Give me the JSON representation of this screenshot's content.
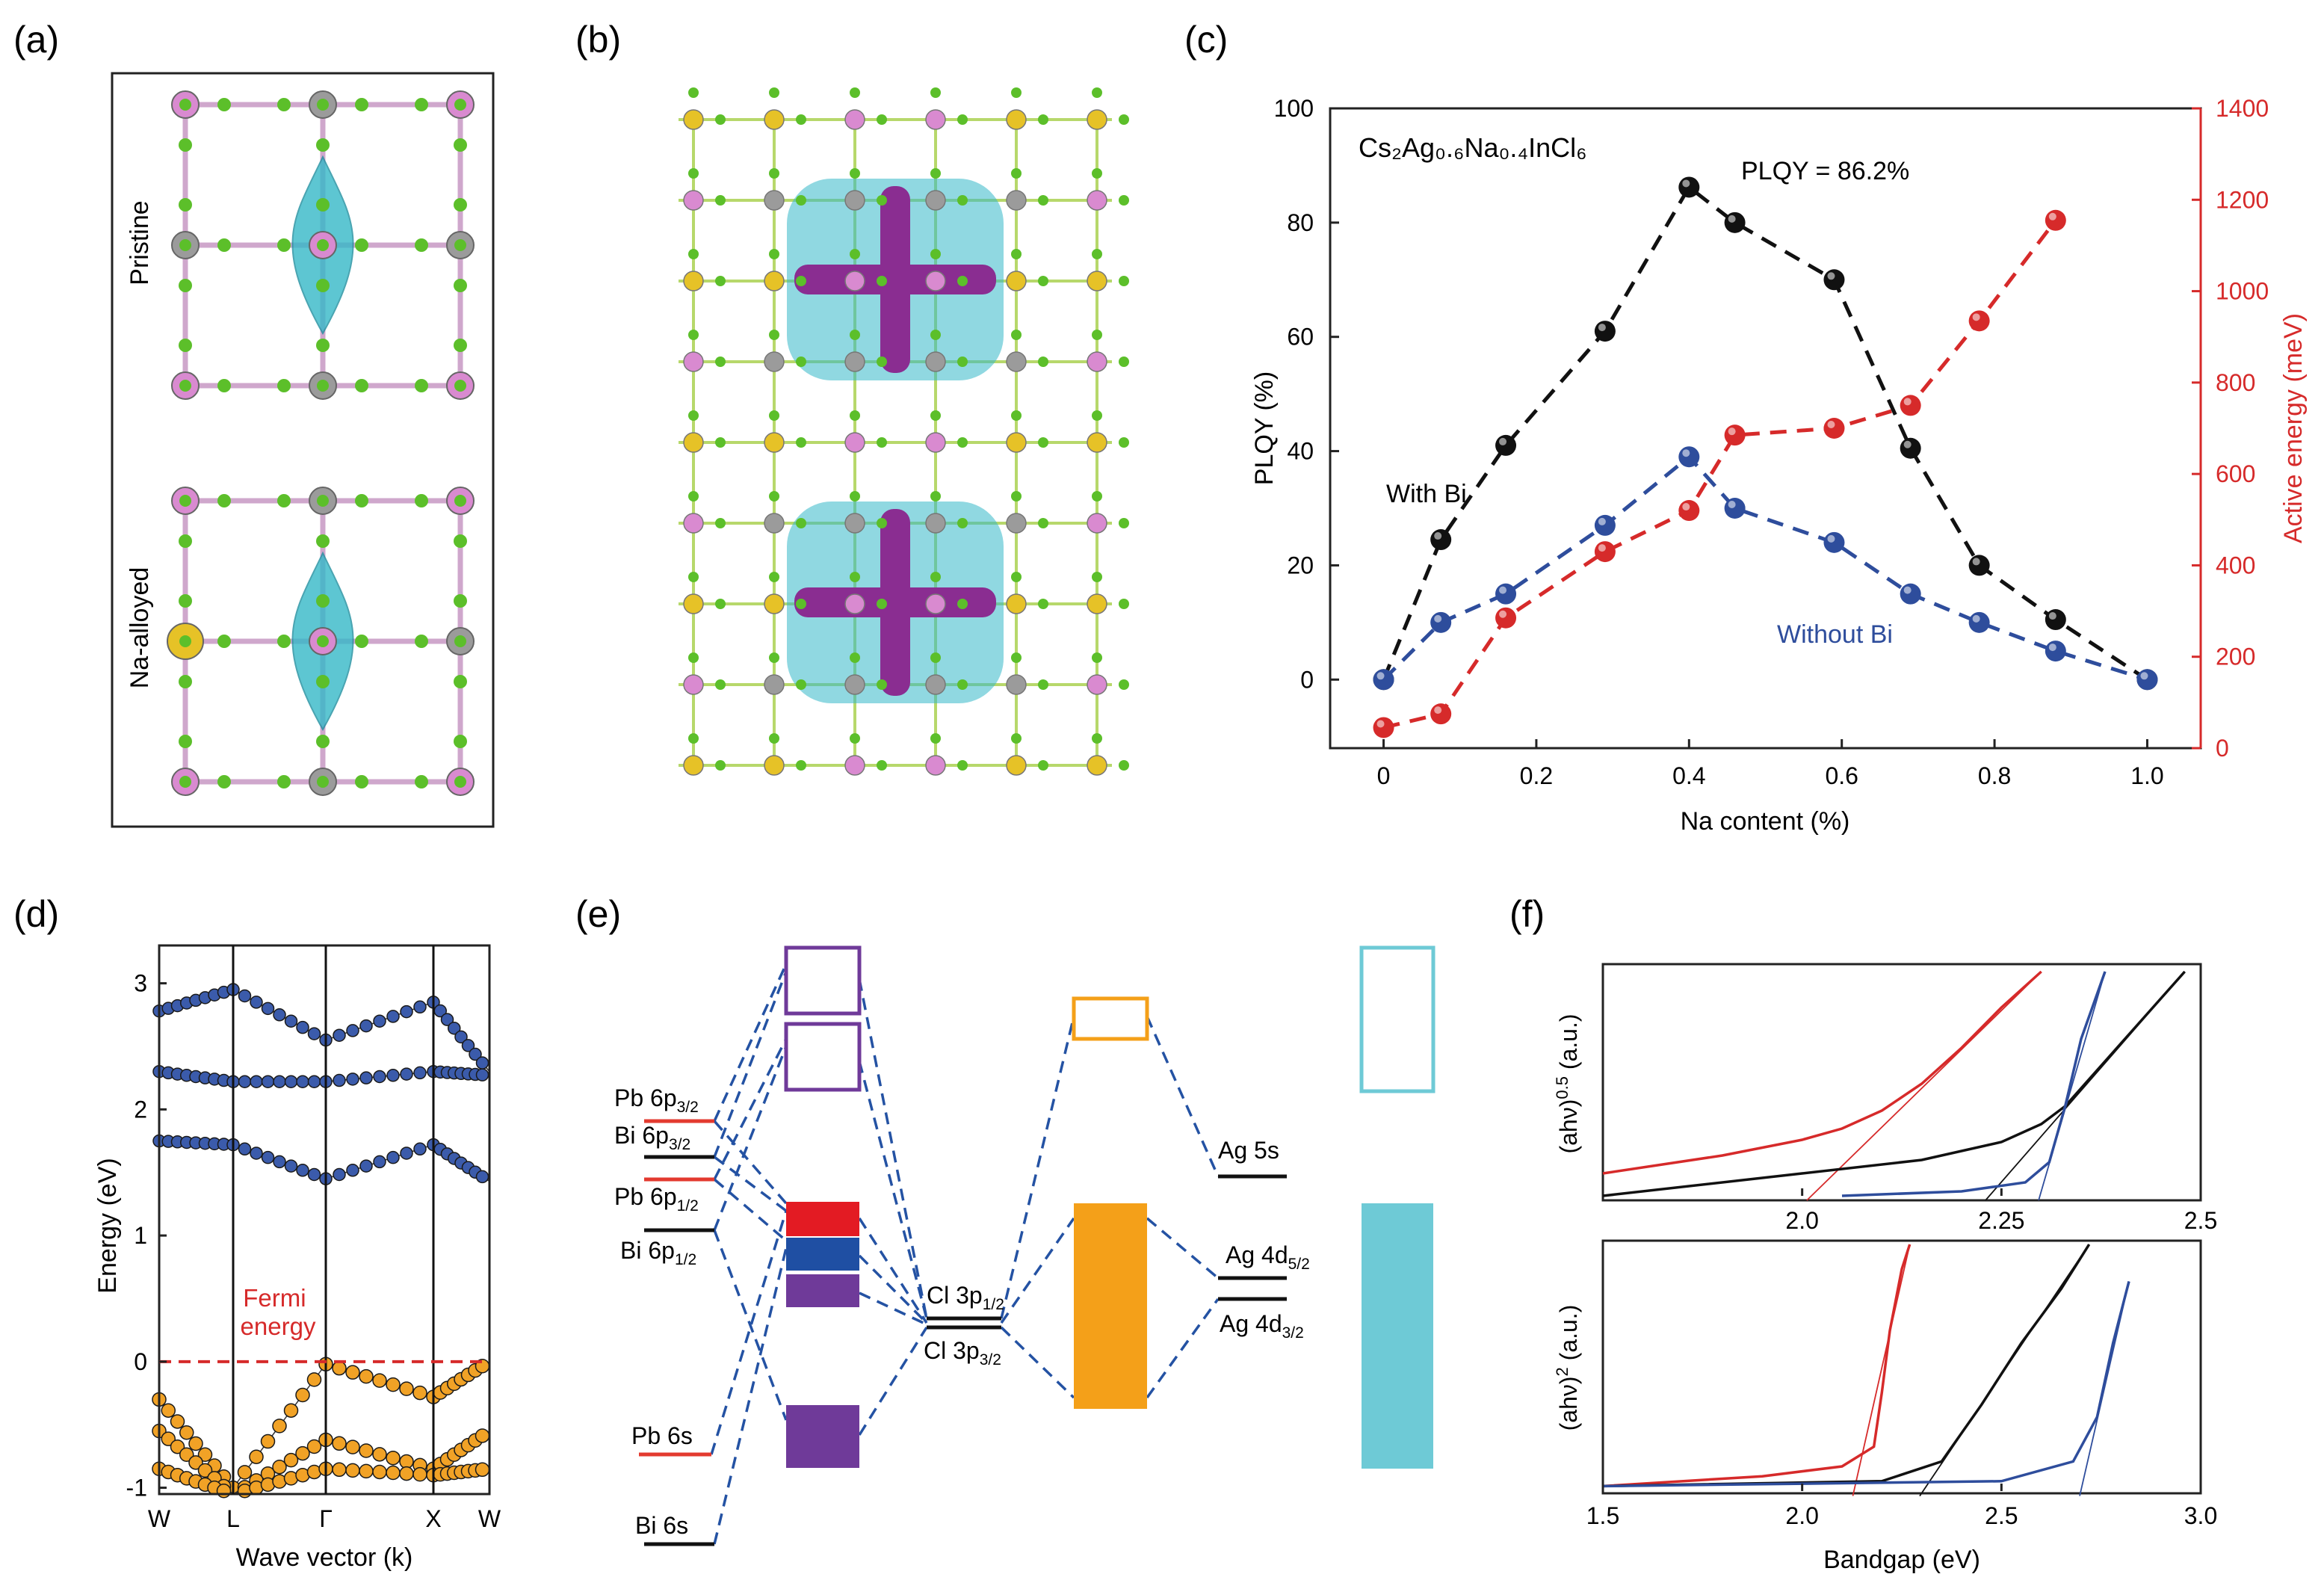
{
  "panel_labels": {
    "a": "(a)",
    "b": "(b)",
    "c": "(c)",
    "d": "(d)",
    "e": "(e)",
    "f": "(f)"
  },
  "panel_a": {
    "top_label": "Pristine",
    "bottom_label": "Na-alloyed"
  },
  "colors": {
    "black_series": "#111111",
    "blue_series": "#2e4d9c",
    "red_series": "#d62a2a",
    "cl_atom": "#5cbf2a",
    "in_atom": "#d98ad0",
    "ag_atom": "#9b9b9b",
    "na_atom": "#e6c227",
    "iso_cyan": "#35b8c8",
    "iso_purple": "#8a2d91",
    "dos_cb": "#3b5bab",
    "dos_vb": "#f1a226",
    "level_red": "#e33a2f",
    "level_blue": "#2452a3",
    "level_purple": "#6f3a99",
    "level_orange": "#f4a019",
    "level_cyan": "#6ecad6"
  },
  "chart_data": [
    {
      "panel": "c",
      "type": "scatter",
      "annotation": "Cs₂Ag₀.₆Na₀.₄InCl₆",
      "peak_label": "PLQY = 86.2%",
      "xlabel": "Na content (%)",
      "ylabel": "PLQY (%)",
      "y2label": "Active energy (meV)",
      "xlim": [
        -0.07,
        1.07
      ],
      "ylim": [
        -12,
        100
      ],
      "y2lim": [
        -0.0,
        1400
      ],
      "xticks": [
        "0",
        "0.2",
        "0.4",
        "0.6",
        "0.8",
        "1.0"
      ],
      "yticks": [
        "0",
        "20",
        "40",
        "60",
        "80",
        "100"
      ],
      "y2ticks": [
        "0",
        "200",
        "400",
        "600",
        "800",
        "1000",
        "1200",
        "1400"
      ],
      "series": [
        {
          "name": "With Bi",
          "axis": "left",
          "color": "#111111",
          "x": [
            0,
            0.075,
            0.16,
            0.29,
            0.4,
            0.46,
            0.59,
            0.69,
            0.78,
            0.88,
            1.0
          ],
          "y": [
            0,
            24.5,
            41,
            61,
            86.2,
            80,
            70,
            40.5,
            20,
            10.5,
            0
          ]
        },
        {
          "name": "Without Bi",
          "axis": "left",
          "color": "#2e4d9c",
          "x": [
            0,
            0.075,
            0.16,
            0.29,
            0.4,
            0.46,
            0.59,
            0.69,
            0.78,
            0.88,
            1.0
          ],
          "y": [
            0,
            10,
            15,
            27,
            39,
            30,
            24,
            15,
            10,
            5,
            0
          ]
        },
        {
          "name": "Active energy",
          "axis": "right",
          "color": "#d62a2a",
          "x": [
            0,
            0.075,
            0.16,
            0.29,
            0.4,
            0.46,
            0.59,
            0.69,
            0.78,
            0.88
          ],
          "y": [
            45,
            75,
            285,
            430,
            520,
            685,
            700,
            750,
            935,
            1155
          ]
        }
      ]
    },
    {
      "panel": "d",
      "type": "line",
      "xlabel": "Wave vector (k)",
      "ylabel": "Energy (eV)",
      "xticks": [
        "W",
        "L",
        "Γ",
        "X",
        "W"
      ],
      "yticks": [
        "-1",
        "0",
        "1",
        "2",
        "3"
      ],
      "ylim": [
        -1.05,
        3.3
      ],
      "fermi_label": "Fermi energy",
      "fermi_label_lines": [
        "Fermi",
        "energy"
      ],
      "bands": [
        {
          "name": "CB1",
          "color": "#3b5bab",
          "energies": [
            1.75,
            1.72,
            1.45,
            1.72,
            1.43,
            1.72
          ]
        },
        {
          "name": "CB2",
          "color": "#3b5bab",
          "energies": [
            2.3,
            2.22,
            2.22,
            2.3,
            2.27,
            2.3
          ]
        },
        {
          "name": "CB3",
          "color": "#3b5bab",
          "energies": [
            2.78,
            2.95,
            2.55,
            2.85,
            2.3,
            2.78
          ]
        },
        {
          "name": "VB1",
          "color": "#f1a226",
          "energies": [
            -0.3,
            -1.0,
            -0.02,
            -0.28,
            0.0,
            -0.3
          ]
        },
        {
          "name": "VB2",
          "color": "#f1a226",
          "energies": [
            -0.55,
            -1.05,
            -0.62,
            -0.85,
            -0.55,
            -0.65
          ]
        },
        {
          "name": "VB3",
          "color": "#f1a226",
          "energies": [
            -0.85,
            -1.05,
            -0.85,
            -0.9,
            -0.85,
            -0.9
          ]
        }
      ]
    },
    {
      "panel": "f-top",
      "type": "line",
      "ylabel": "(ahν)^0.5 (a.u.)",
      "xticks": [
        "2.0",
        "2.25",
        "2.5"
      ],
      "xlim": [
        1.75,
        2.5
      ],
      "series": [
        {
          "name": "red",
          "color": "#d62a2a",
          "x": [
            1.75,
            1.9,
            2.0,
            2.05,
            2.1,
            2.15,
            2.2,
            2.25,
            2.3
          ],
          "y": [
            0.1,
            0.18,
            0.25,
            0.3,
            0.38,
            0.5,
            0.66,
            0.84,
            1.0
          ]
        },
        {
          "name": "black",
          "color": "#111111",
          "x": [
            1.75,
            2.0,
            2.15,
            2.25,
            2.3,
            2.33,
            2.38,
            2.43,
            2.48
          ],
          "y": [
            0.0,
            0.1,
            0.16,
            0.24,
            0.32,
            0.4,
            0.6,
            0.8,
            1.0
          ]
        },
        {
          "name": "blue",
          "color": "#2e4d9c",
          "x": [
            2.05,
            2.2,
            2.28,
            2.31,
            2.33,
            2.35,
            2.38
          ],
          "y": [
            0.0,
            0.02,
            0.06,
            0.15,
            0.4,
            0.7,
            1.0
          ]
        }
      ]
    },
    {
      "panel": "f-bottom",
      "type": "line",
      "ylabel": "(ahν)^2 (a.u.)",
      "xlabel": "Bandgap (eV)",
      "xticks": [
        "1.5",
        "2.0",
        "2.5",
        "3.0"
      ],
      "xlim": [
        1.5,
        3.0
      ],
      "series": [
        {
          "name": "red",
          "color": "#d62a2a",
          "x": [
            1.5,
            1.9,
            2.1,
            2.18,
            2.2,
            2.22,
            2.25,
            2.27
          ],
          "y": [
            0.02,
            0.06,
            0.1,
            0.18,
            0.4,
            0.65,
            0.9,
            1.0
          ]
        },
        {
          "name": "black",
          "color": "#111111",
          "x": [
            1.5,
            2.2,
            2.35,
            2.45,
            2.55,
            2.65,
            2.72
          ],
          "y": [
            0.02,
            0.04,
            0.12,
            0.35,
            0.6,
            0.82,
            1.0
          ]
        },
        {
          "name": "blue",
          "color": "#2e4d9c",
          "x": [
            1.5,
            2.5,
            2.68,
            2.74,
            2.78,
            2.82
          ],
          "y": [
            0.02,
            0.04,
            0.12,
            0.3,
            0.6,
            0.85
          ]
        }
      ]
    }
  ],
  "panel_e": {
    "left_levels": [
      {
        "id": "pb6p32",
        "label": "Pb 6p",
        "sub": "3/2",
        "color": "#e33a2f"
      },
      {
        "id": "bi6p32",
        "label": "Bi 6p",
        "sub": "3/2",
        "color": "#111111"
      },
      {
        "id": "pb6p12",
        "label": "Pb 6p",
        "sub": "1/2",
        "color": "#e33a2f"
      },
      {
        "id": "bi6p12",
        "label": "Bi 6p",
        "sub": "1/2",
        "color": "#111111"
      },
      {
        "id": "pb6s",
        "label": "Pb 6s",
        "sub": "",
        "color": "#e33a2f"
      },
      {
        "id": "bi6s",
        "label": "Bi 6s",
        "sub": "",
        "color": "#111111"
      }
    ],
    "cl_levels": [
      {
        "label": "Cl 3p",
        "sub": "1/2"
      },
      {
        "label": "Cl 3p",
        "sub": "3/2"
      }
    ],
    "ag_levels": [
      {
        "label": "Ag 5s",
        "sub": ""
      },
      {
        "label": "Ag 4d",
        "sub": "5/2"
      },
      {
        "label": "Ag 4d",
        "sub": "3/2"
      }
    ]
  }
}
